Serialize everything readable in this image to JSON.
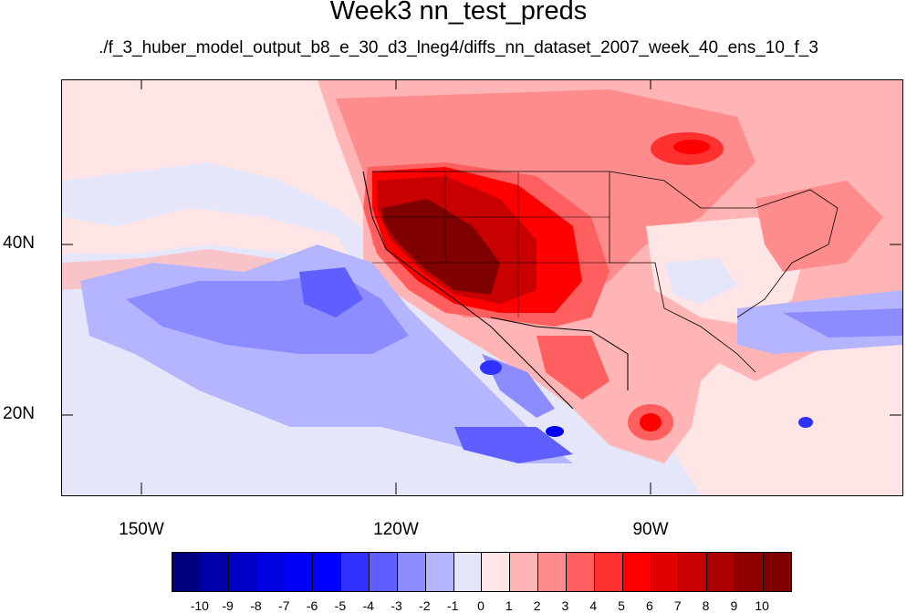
{
  "title": "Week3 nn_test_preds",
  "subtitle": "./f_3_huber_model_output_b8_e_30_d3_lneg4/diffs_nn_dataset_2007_week_40_ens_10_f_3",
  "map": {
    "lat_labels": [
      "40N",
      "20N"
    ],
    "lon_labels": [
      "150W",
      "120W",
      "90W"
    ]
  },
  "colorbar": {
    "colors": [
      "#00007f",
      "#0000aa",
      "#0000c8",
      "#0000e1",
      "#0000f6",
      "#0000ff",
      "#3030ff",
      "#5f5fff",
      "#8c8cff",
      "#b5b5ff",
      "#e5e5fa",
      "#ffe5e5",
      "#ffb5b5",
      "#ff8c8c",
      "#ff5f5f",
      "#ff3030",
      "#ff0000",
      "#e10000",
      "#c80000",
      "#aa0000",
      "#900000",
      "#7f0000"
    ],
    "labels": [
      "-10",
      "-9",
      "-8",
      "-7",
      "-6",
      "-5",
      "-4",
      "-3",
      "-2",
      "-1",
      "0",
      "1",
      "2",
      "3",
      "4",
      "5",
      "6",
      "7",
      "8",
      "9",
      "10"
    ]
  }
}
